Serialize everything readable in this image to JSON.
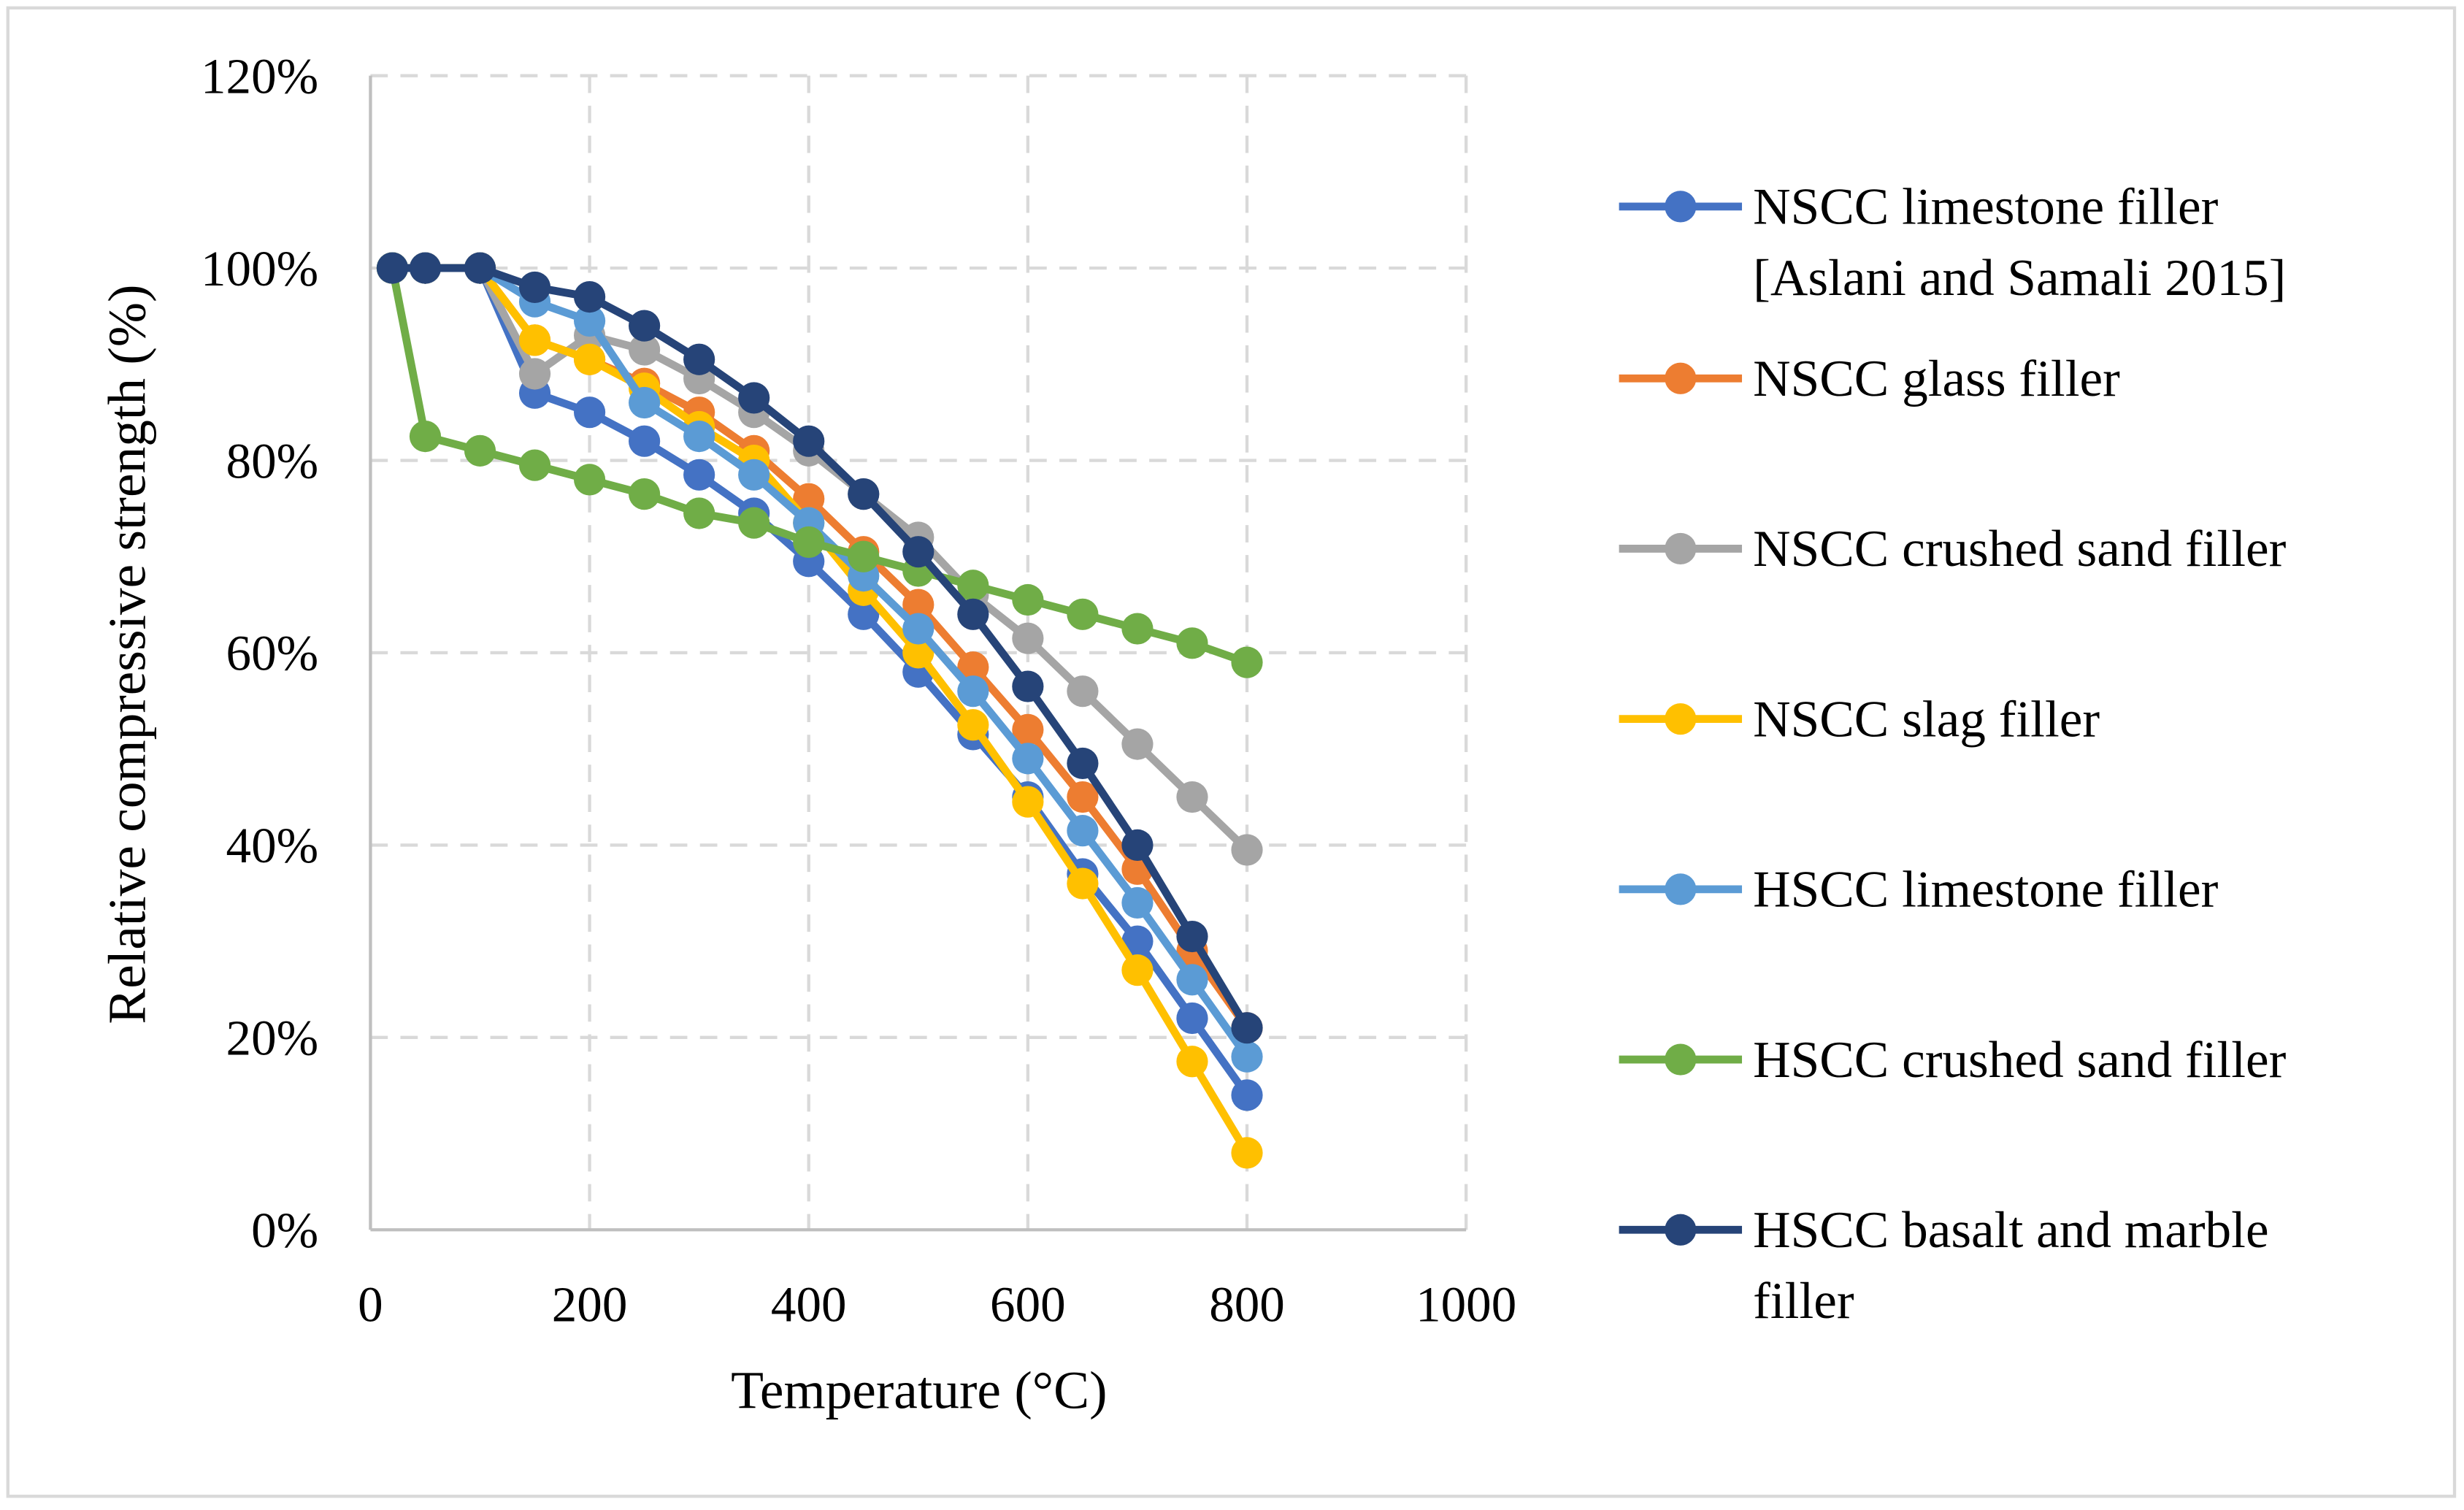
{
  "chart_data": {
    "type": "line",
    "title": "",
    "xlabel": "Temperature (°C)",
    "ylabel": "Relative compressive strength (%)",
    "xlim": [
      0,
      1000
    ],
    "ylim": [
      0,
      120
    ],
    "x_ticks": [
      0,
      200,
      400,
      600,
      800,
      1000
    ],
    "y_ticks": [
      0,
      20,
      40,
      60,
      80,
      100,
      120
    ],
    "x_tick_labels": [
      "0",
      "200",
      "400",
      "600",
      "800",
      "1000"
    ],
    "y_tick_labels": [
      "0%",
      "20%",
      "40%",
      "60%",
      "80%",
      "100%",
      "120%"
    ],
    "grid": true,
    "legend_placement": "right",
    "x": [
      20,
      50,
      100,
      150,
      200,
      250,
      300,
      350,
      400,
      450,
      500,
      550,
      600,
      650,
      700,
      750,
      800
    ],
    "series": [
      {
        "name": "NSCC limestone filler",
        "name_line2": "[Aslani and Samali 2015]",
        "color": "#4472C4",
        "values": [
          100,
          100,
          100,
          87,
          85,
          82,
          78.5,
          74.5,
          69.5,
          64,
          58,
          51.5,
          45,
          37,
          30,
          22,
          14
        ]
      },
      {
        "name": "NSCC glass filler",
        "color": "#ED7D31",
        "values": [
          100,
          100,
          100,
          92.5,
          90.5,
          88,
          85,
          81,
          76,
          70.5,
          65,
          58.5,
          52,
          45,
          37.5,
          29,
          21
        ]
      },
      {
        "name": "NSCC crushed sand filler",
        "color": "#A5A5A5",
        "values": [
          100,
          100,
          100,
          89,
          93,
          91.5,
          88.5,
          85,
          81,
          76.5,
          72,
          66,
          61.5,
          56,
          50.5,
          45,
          39.5
        ]
      },
      {
        "name": "NSCC slag filler",
        "color": "#FFC000",
        "values": [
          100,
          100,
          100,
          92.5,
          90.5,
          87.5,
          83.5,
          80,
          73.5,
          66.5,
          60,
          52.5,
          44.5,
          36,
          27,
          17.5,
          8
        ]
      },
      {
        "name": "HSCC limestone filler",
        "color": "#5B9BD5",
        "values": [
          100,
          100,
          100,
          96.5,
          94.5,
          86,
          82.5,
          78.5,
          73.5,
          68,
          62.5,
          56,
          49,
          41.5,
          34,
          26,
          18
        ]
      },
      {
        "name": "HSCC crushed sand filler",
        "color": "#70AD47",
        "values": [
          100,
          82.5,
          81,
          79.5,
          78,
          76.5,
          74.5,
          73.5,
          71.5,
          70,
          68.5,
          67,
          65.5,
          64,
          62.5,
          61,
          59
        ]
      },
      {
        "name": "HSCC basalt and marble",
        "name_line2": "filler",
        "color": "#264478",
        "values": [
          100,
          100,
          100,
          98,
          97,
          94,
          90.5,
          86.5,
          82,
          76.5,
          70.5,
          64,
          56.5,
          48.5,
          40,
          30.5,
          21
        ]
      }
    ]
  }
}
